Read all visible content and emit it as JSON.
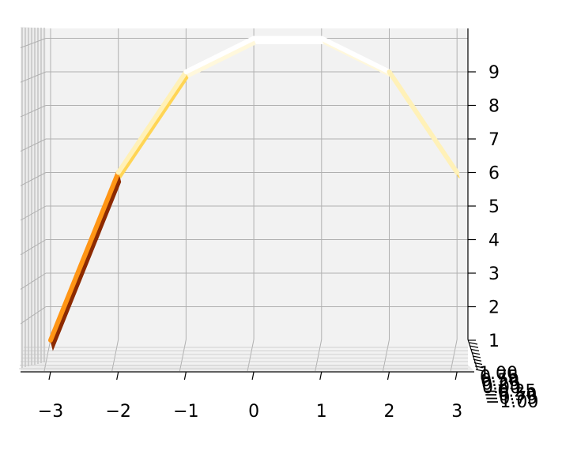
{
  "chart_data": {
    "type": "surface",
    "title": "",
    "xlabel": "",
    "ylabel": "",
    "zlabel": "",
    "x_ticks": [
      "−3",
      "−2",
      "−1",
      "0",
      "1",
      "2",
      "3"
    ],
    "z_ticks": [
      "1",
      "2",
      "3",
      "4",
      "5",
      "6",
      "7",
      "8",
      "9"
    ],
    "y_ticks": [
      "1.00",
      "0.75",
      "0.50",
      "0.25",
      "0.00",
      "−0.25",
      "−0.50",
      "−0.75",
      "−1.00"
    ],
    "xlim": [
      -3,
      3
    ],
    "zlim": [
      1,
      10
    ],
    "ylim": [
      -1,
      1
    ],
    "grid": true,
    "colormap": "afmhot",
    "x": [
      -3,
      -2,
      -1,
      0,
      1,
      2,
      3
    ],
    "z": [
      1,
      6,
      9,
      10,
      10,
      9,
      6
    ]
  }
}
